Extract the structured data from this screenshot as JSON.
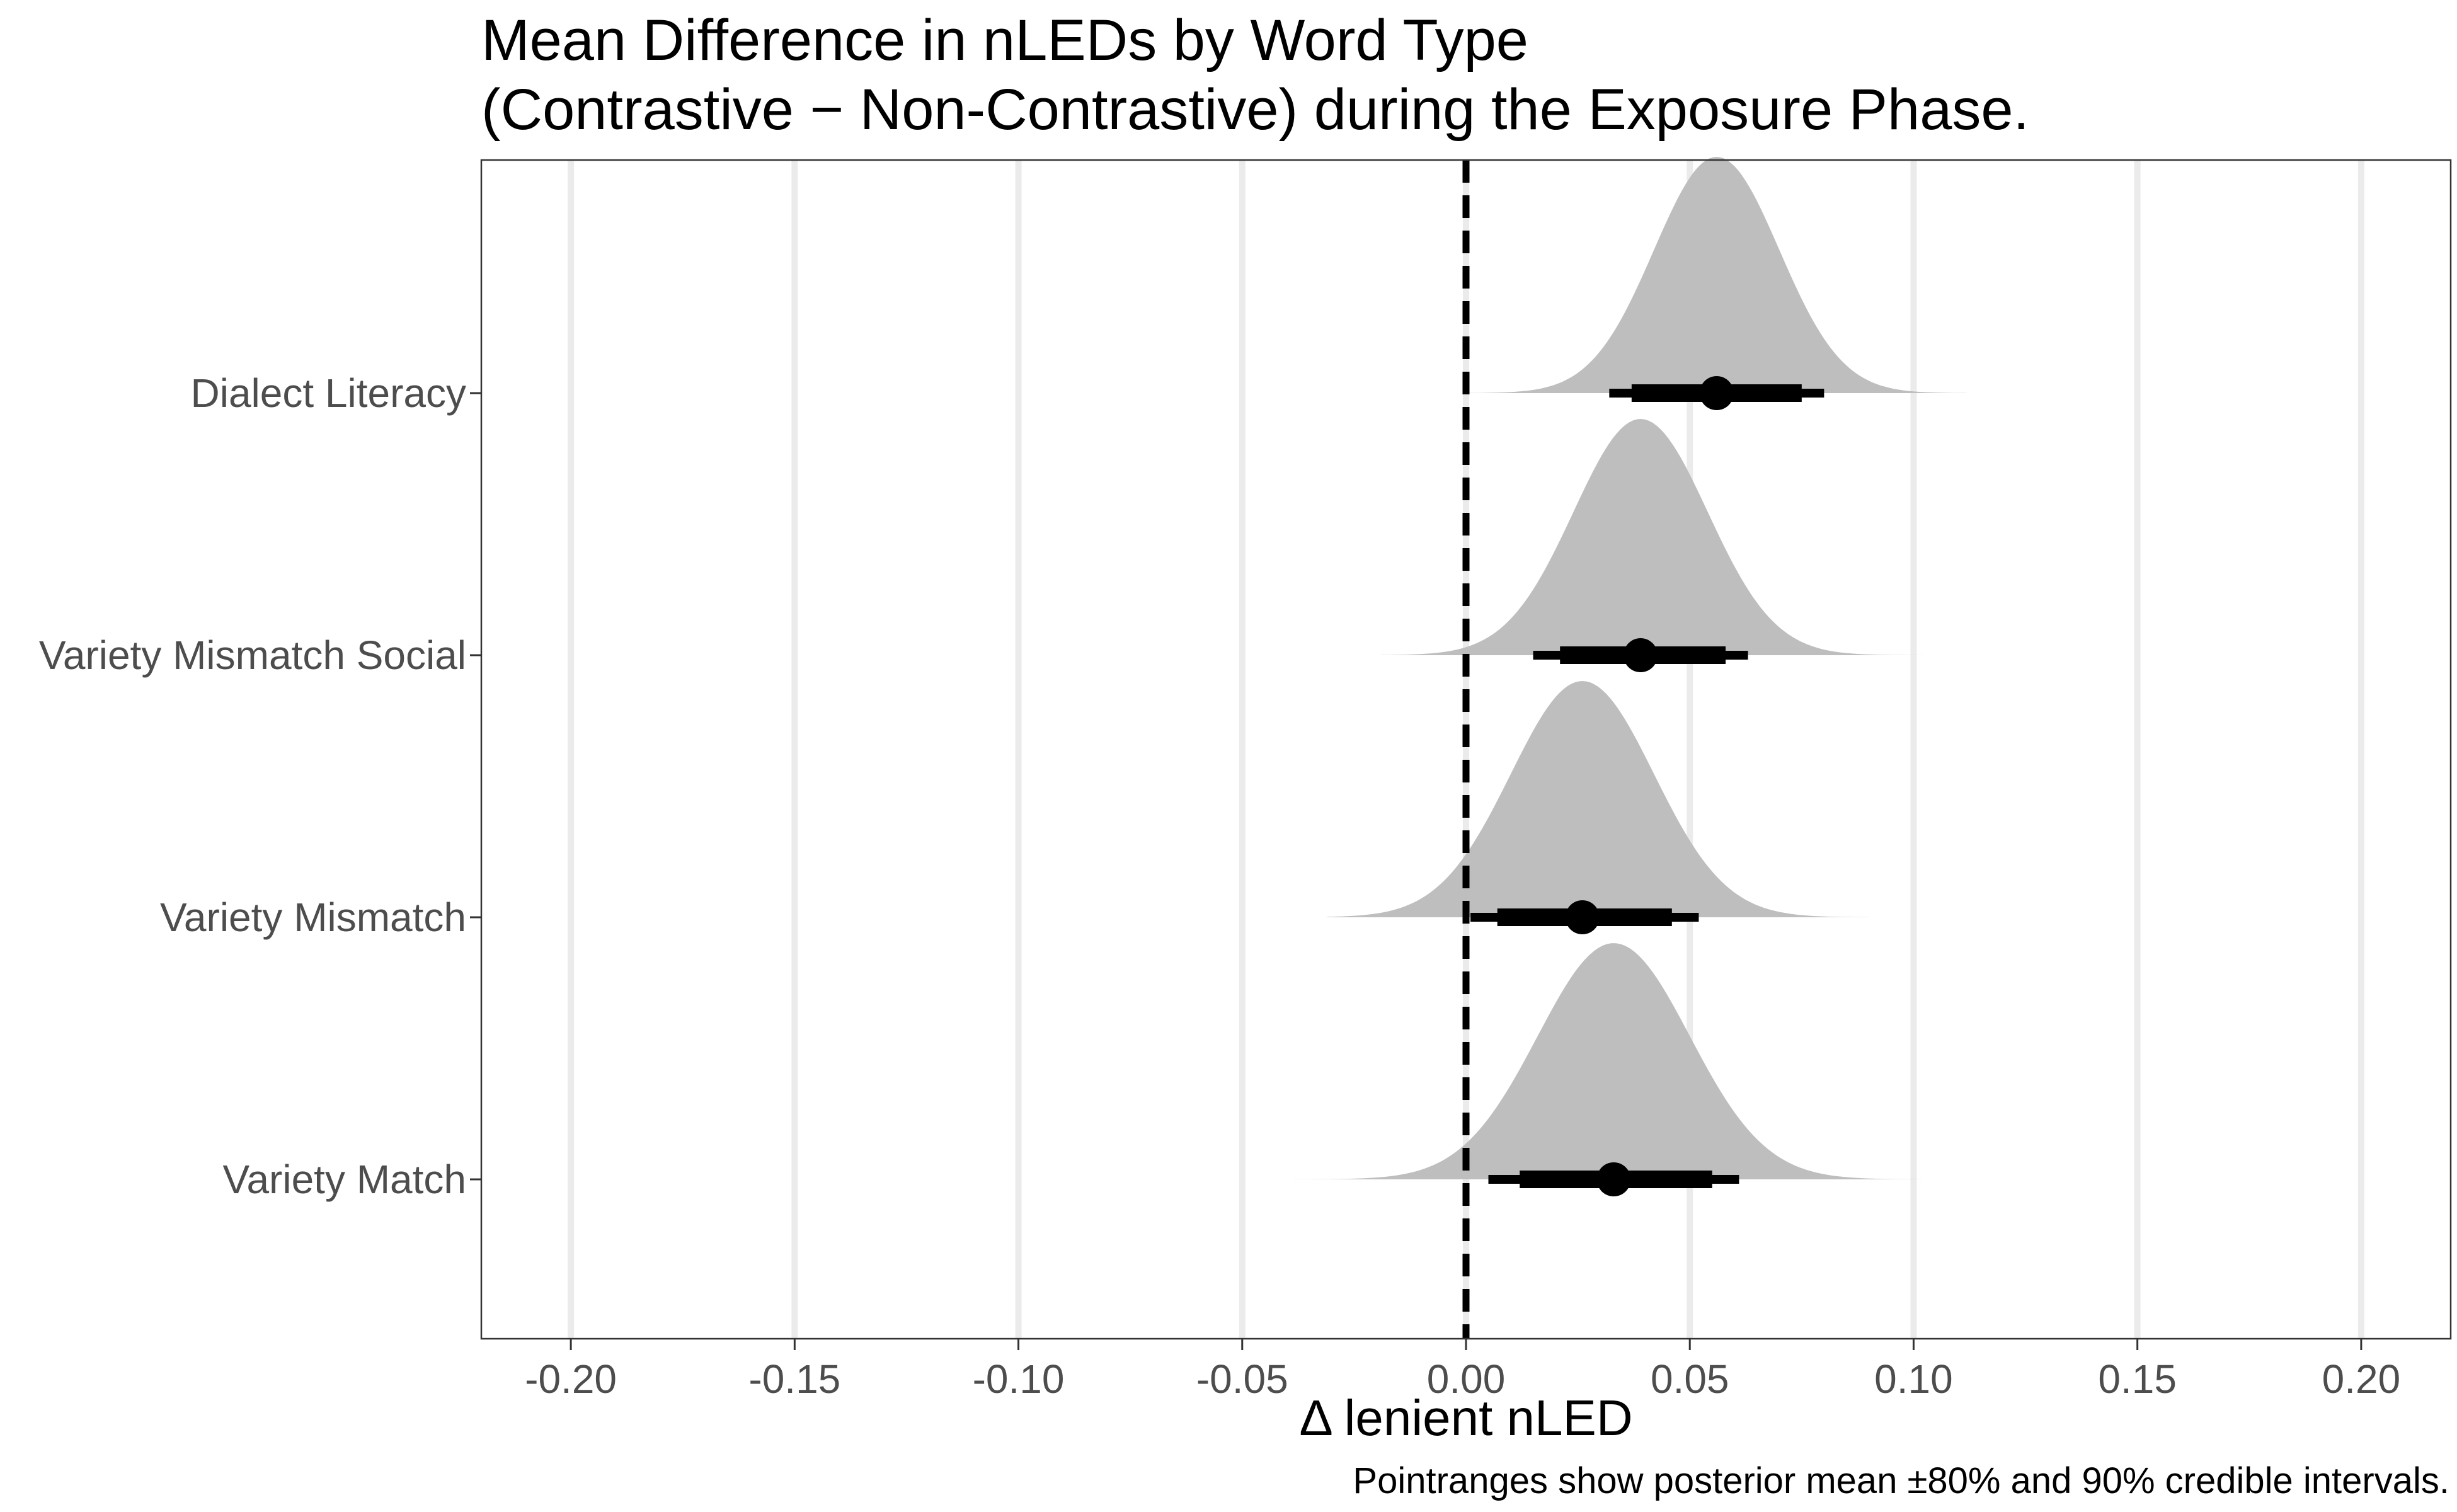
{
  "chart_data": {
    "type": "halfeye",
    "title_lines": [
      "Mean Difference in nLEDs by Word Type",
      "(Contrastive − Non-Contrastive) during the Exposure Phase."
    ],
    "xlabel": "Δ lenient nLED",
    "ylabel": "",
    "caption": "Pointranges show posterior mean ±80% and 90% credible intervals.",
    "xlim": [
      -0.22,
      0.22
    ],
    "x_ticks": [
      -0.2,
      -0.15,
      -0.1,
      -0.05,
      0.0,
      0.05,
      0.1,
      0.15,
      0.2
    ],
    "x_tick_labels": [
      "-0.20",
      "-0.15",
      "-0.10",
      "-0.05",
      "0.00",
      "0.05",
      "0.10",
      "0.15",
      "0.20"
    ],
    "reference_line": {
      "x": 0.0,
      "style": "dashed",
      "color": "#000000"
    },
    "grid": {
      "vertical_major": true,
      "horizontal": false
    },
    "density_fill": "#bebebe",
    "point_color": "#000000",
    "categories": [
      "Dialect Literacy",
      "Variety Mismatch Social",
      "Variety Mismatch",
      "Variety Match"
    ],
    "series": [
      {
        "category": "Dialect Literacy",
        "mean": 0.056,
        "interval_80": [
          0.037,
          0.075
        ],
        "interval_90": [
          0.032,
          0.08
        ],
        "density_range": [
          0.0,
          0.112
        ],
        "density_sd": 0.014,
        "density_peak": 0.056
      },
      {
        "category": "Variety Mismatch Social",
        "mean": 0.039,
        "interval_80": [
          0.021,
          0.058
        ],
        "interval_90": [
          0.015,
          0.063
        ],
        "density_range": [
          -0.019,
          0.106
        ],
        "density_sd": 0.015,
        "density_peak": 0.039
      },
      {
        "category": "Variety Mismatch",
        "mean": 0.026,
        "interval_80": [
          0.007,
          0.046
        ],
        "interval_90": [
          0.001,
          0.052
        ],
        "density_range": [
          -0.031,
          0.09
        ],
        "density_sd": 0.016,
        "density_peak": 0.026
      },
      {
        "category": "Variety Match",
        "mean": 0.033,
        "interval_80": [
          0.012,
          0.055
        ],
        "interval_90": [
          0.005,
          0.061
        ],
        "density_range": [
          -0.041,
          0.102
        ],
        "density_sd": 0.017,
        "density_peak": 0.033
      }
    ]
  }
}
